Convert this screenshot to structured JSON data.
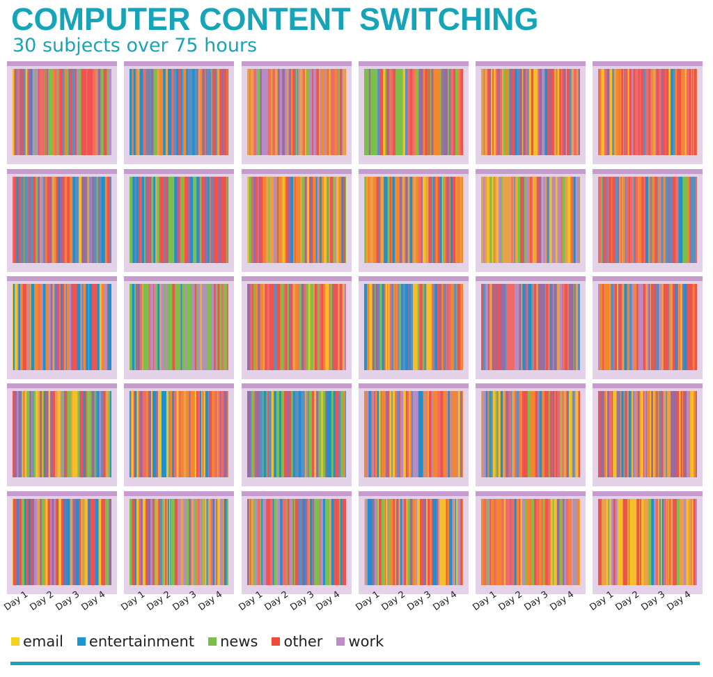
{
  "title": "COMPUTER CONTENT SWITCHING",
  "subtitle": "30 subjects over 75 hours",
  "chart_data": {
    "type": "heatmap",
    "panels": 30,
    "layout": "6 columns x 5 rows",
    "x_tick_labels": [
      "Day 1",
      "Day 2",
      "Day 3",
      "Day 4"
    ],
    "legend": [
      {
        "label": "email",
        "color": "#f5d220"
      },
      {
        "label": "entertainment",
        "color": "#1e95d3"
      },
      {
        "label": "news",
        "color": "#7cbd4b"
      },
      {
        "label": "other",
        "color": "#ee4a36"
      },
      {
        "label": "work",
        "color": "#bd8ec6"
      }
    ],
    "legend_position": "bottom-left"
  }
}
